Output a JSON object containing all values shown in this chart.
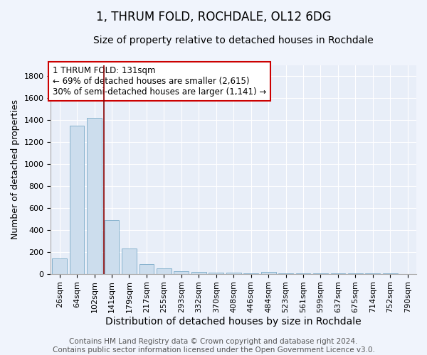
{
  "title": "1, THRUM FOLD, ROCHDALE, OL12 6DG",
  "subtitle": "Size of property relative to detached houses in Rochdale",
  "xlabel": "Distribution of detached houses by size in Rochdale",
  "ylabel": "Number of detached properties",
  "bar_color": "#ccdded",
  "bar_edge_color": "#7aaac8",
  "background_color": "#e8eef8",
  "grid_color": "#ffffff",
  "fig_bg_color": "#f0f4fc",
  "categories": [
    "26sqm",
    "64sqm",
    "102sqm",
    "141sqm",
    "179sqm",
    "217sqm",
    "255sqm",
    "293sqm",
    "332sqm",
    "370sqm",
    "408sqm",
    "446sqm",
    "484sqm",
    "523sqm",
    "561sqm",
    "599sqm",
    "637sqm",
    "675sqm",
    "714sqm",
    "752sqm",
    "790sqm"
  ],
  "bar_values": [
    140,
    1350,
    1420,
    490,
    230,
    90,
    50,
    25,
    20,
    10,
    10,
    5,
    15,
    5,
    3,
    2,
    2,
    1,
    1,
    1,
    0
  ],
  "red_line_x": 2.57,
  "ylim": [
    0,
    1900
  ],
  "yticks": [
    0,
    200,
    400,
    600,
    800,
    1000,
    1200,
    1400,
    1600,
    1800
  ],
  "annotation_text": "1 THRUM FOLD: 131sqm\n← 69% of detached houses are smaller (2,615)\n30% of semi-detached houses are larger (1,141) →",
  "annotation_box_color": "#ffffff",
  "annotation_box_edge_color": "#cc0000",
  "red_line_color": "#880000",
  "footer_text": "Contains HM Land Registry data © Crown copyright and database right 2024.\nContains public sector information licensed under the Open Government Licence v3.0.",
  "title_fontsize": 12,
  "subtitle_fontsize": 10,
  "xlabel_fontsize": 10,
  "ylabel_fontsize": 9,
  "tick_fontsize": 8,
  "annotation_fontsize": 8.5,
  "footer_fontsize": 7.5
}
